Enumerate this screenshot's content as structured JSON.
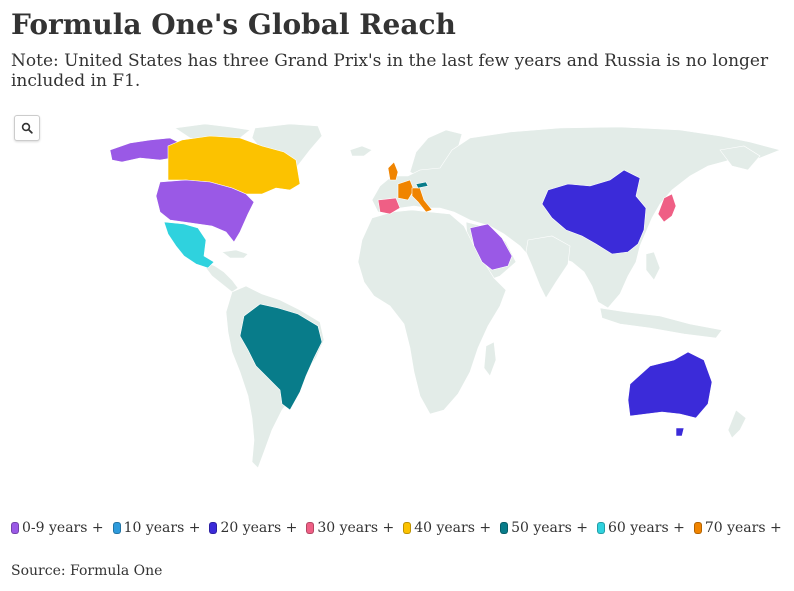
{
  "title": "Formula One's Global Reach",
  "subtitle": "Note: United States has three Grand Prix's in the last few years and Russia is no longer included in F1.",
  "search_icon": "search-icon",
  "colors": {
    "land": "#e3ece8",
    "border": "#ffffff",
    "c0_9": "#9a59e6",
    "c10": "#2e9bdc",
    "c20": "#3b2bd9",
    "c30": "#ef5f85",
    "c40": "#fcc200",
    "c50": "#087c8a",
    "c60": "#2fd2de",
    "c70": "#f08400"
  },
  "legend": [
    {
      "label": "0-9 years +",
      "color": "#9a59e6"
    },
    {
      "label": "10 years +",
      "color": "#2e9bdc"
    },
    {
      "label": "20 years +",
      "color": "#3b2bd9"
    },
    {
      "label": "30 years +",
      "color": "#ef5f85"
    },
    {
      "label": "40 years +",
      "color": "#fcc200"
    },
    {
      "label": "50 years +",
      "color": "#087c8a"
    },
    {
      "label": "60 years +",
      "color": "#2fd2de"
    },
    {
      "label": "70 years +",
      "color": "#f08400"
    }
  ],
  "source": "Source: Formula One"
}
